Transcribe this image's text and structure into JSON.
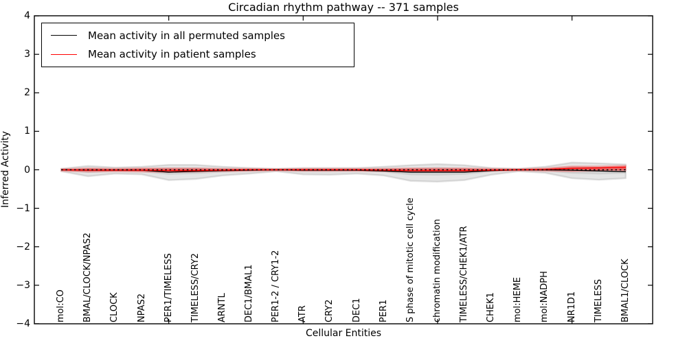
{
  "title": "Circadian rhythm pathway -- 371 samples",
  "axes": {
    "xlabel": "Cellular Entities",
    "ylabel": "Inferred Activity"
  },
  "legend": {
    "items": [
      {
        "label": "Mean activity in all permuted samples",
        "color": "#000000"
      },
      {
        "label": "Mean activity in patient samples",
        "color": "#ff0000"
      }
    ]
  },
  "chart_data": {
    "type": "line",
    "title": "Circadian rhythm pathway -- 371 samples",
    "xlabel": "Cellular Entities",
    "ylabel": "Inferred Activity",
    "ylim": [
      -4,
      4
    ],
    "ytick_labels": [
      "−4",
      "−3",
      "−2",
      "−1",
      "0",
      "1",
      "2",
      "3",
      "4"
    ],
    "ytick_values": [
      -4,
      -3,
      -2,
      -1,
      0,
      1,
      2,
      3,
      4
    ],
    "x_major_ticks": [
      5,
      10,
      15,
      20
    ],
    "grid": false,
    "legend_position": "upper left",
    "zero_line": {
      "shown": true,
      "style": "dashed",
      "color": "#000000",
      "y": 0
    },
    "categories": [
      "mol:CO",
      "BMAL/CLOCK/NPAS2",
      "CLOCK",
      "NPAS2",
      "PER1/TIMELESS",
      "TIMELESS/CRY2",
      "ARNTL",
      "DEC1/BMAL1",
      "PER1-2 / CRY1-2",
      "ATR",
      "CRY2",
      "DEC1",
      "PER1",
      "S phase of mitotic cell cycle",
      "chromatin modification",
      "TIMELESS/CHEK1/ATR",
      "CHEK1",
      "mol:HEME",
      "mol:NADPH",
      "NR1D1",
      "TIMELESS",
      "BMAL1/CLOCK"
    ],
    "series": [
      {
        "name": "Mean activity in all permuted samples",
        "color": "#000000",
        "values": [
          0,
          -0.01,
          -0.01,
          -0.01,
          -0.06,
          -0.04,
          -0.02,
          -0.01,
          0,
          -0.01,
          -0.01,
          -0.01,
          -0.03,
          -0.06,
          -0.06,
          -0.06,
          -0.02,
          0,
          0,
          -0.01,
          -0.03,
          -0.05
        ]
      },
      {
        "name": "Mean activity in patient samples",
        "color": "#ff0000",
        "values": [
          0,
          -0.01,
          -0.01,
          -0.01,
          -0.02,
          -0.02,
          -0.01,
          0,
          0,
          0,
          0,
          0,
          -0.01,
          -0.02,
          -0.02,
          -0.02,
          -0.01,
          0,
          0.01,
          0.04,
          0.05,
          0.07
        ]
      }
    ],
    "bands": [
      {
        "name": "permuted-range-outer",
        "color": "#000000",
        "opacity": 0.1,
        "edge_opacity": 0.1,
        "upper": [
          0.03,
          0.1,
          0.06,
          0.08,
          0.13,
          0.13,
          0.08,
          0.05,
          0.03,
          0.05,
          0.05,
          0.05,
          0.08,
          0.12,
          0.15,
          0.12,
          0.05,
          0.03,
          0.08,
          0.19,
          0.17,
          0.14
        ],
        "lower": [
          -0.04,
          -0.17,
          -0.1,
          -0.12,
          -0.27,
          -0.24,
          -0.15,
          -0.1,
          -0.04,
          -0.12,
          -0.13,
          -0.1,
          -0.15,
          -0.29,
          -0.31,
          -0.27,
          -0.13,
          -0.04,
          -0.08,
          -0.22,
          -0.26,
          -0.22
        ]
      },
      {
        "name": "permuted-range-inner",
        "color": "#000000",
        "opacity": 0.09,
        "edge_opacity": 0,
        "upper": [
          0.01,
          0.05,
          0.03,
          0.04,
          0.06,
          0.06,
          0.04,
          0.02,
          0.01,
          0.02,
          0.02,
          0.02,
          0.04,
          0.05,
          0.07,
          0.05,
          0.02,
          0.01,
          0.04,
          0.09,
          0.08,
          0.07
        ],
        "lower": [
          -0.02,
          -0.08,
          -0.05,
          -0.06,
          -0.13,
          -0.11,
          -0.07,
          -0.05,
          -0.02,
          -0.06,
          -0.06,
          -0.05,
          -0.07,
          -0.14,
          -0.15,
          -0.13,
          -0.06,
          -0.02,
          -0.04,
          -0.1,
          -0.12,
          -0.1
        ]
      },
      {
        "name": "patient-range-outer",
        "color": "#ff0000",
        "opacity": 0.25,
        "edge_opacity": 0.18,
        "upper": [
          0.02,
          0.04,
          0.03,
          0.04,
          0.04,
          0.04,
          0.03,
          0.03,
          0.02,
          0.03,
          0.03,
          0.03,
          0.03,
          0.04,
          0.04,
          0.04,
          0.03,
          0.02,
          0.04,
          0.09,
          0.09,
          0.11
        ],
        "lower": [
          -0.03,
          -0.05,
          -0.04,
          -0.05,
          -0.06,
          -0.05,
          -0.04,
          -0.03,
          -0.02,
          -0.03,
          -0.03,
          -0.03,
          -0.04,
          -0.05,
          -0.05,
          -0.05,
          -0.03,
          -0.02,
          -0.03,
          -0.04,
          -0.02,
          -0.02
        ]
      },
      {
        "name": "patient-range-inner",
        "color": "#ff0000",
        "opacity": 0.35,
        "edge_opacity": 0,
        "upper": [
          0.01,
          0.02,
          0.015,
          0.02,
          0.02,
          0.02,
          0.015,
          0.015,
          0.01,
          0.015,
          0.015,
          0.015,
          0.015,
          0.02,
          0.02,
          0.02,
          0.015,
          0.01,
          0.02,
          0.05,
          0.06,
          0.08
        ],
        "lower": [
          -0.015,
          -0.03,
          -0.02,
          -0.03,
          -0.03,
          -0.03,
          -0.02,
          -0.015,
          -0.01,
          -0.015,
          -0.015,
          -0.015,
          -0.02,
          -0.03,
          -0.03,
          -0.03,
          -0.015,
          -0.01,
          -0.015,
          -0.02,
          -0.01,
          -0.01
        ]
      }
    ]
  }
}
